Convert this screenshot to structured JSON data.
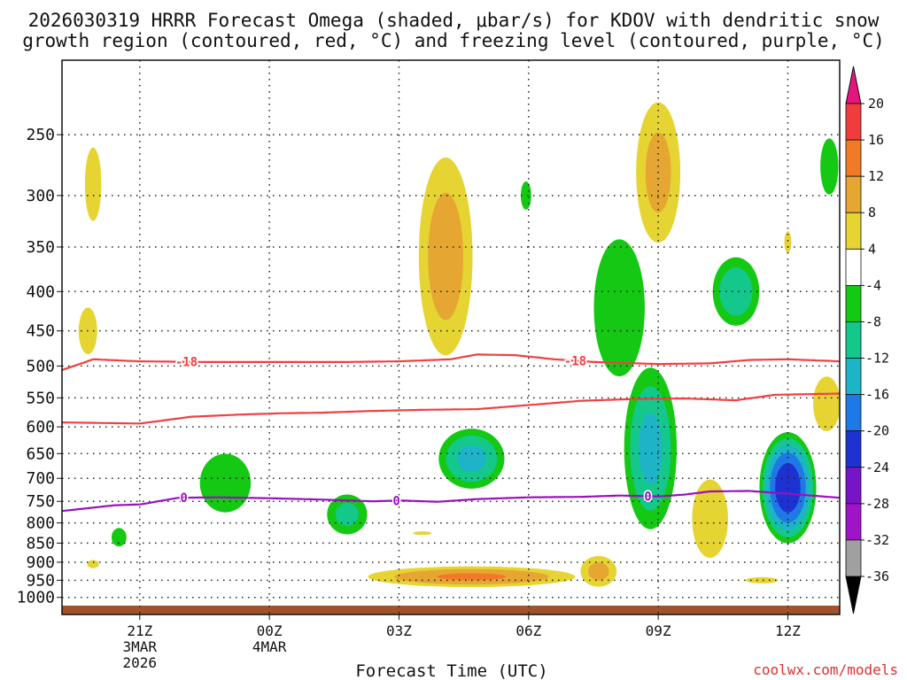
{
  "chart_data": {
    "type": "heatmap",
    "title_line1": "2026030319 HRRR Forecast Omega (shaded, μbar/s) for KDOV with dendritic snow",
    "title_line2": "growth region (contoured, red, °C) and freezing level (contoured, purple, °C)",
    "xlabel": "Forecast Time (UTC)",
    "watermark": "coolwx.com/models",
    "x_range_hours": [
      -3,
      27
    ],
    "x_ticks": [
      {
        "h": 0,
        "label": "21Z",
        "sub1": "3MAR",
        "sub2": "2026"
      },
      {
        "h": 5,
        "label": "00Z",
        "sub1": "4MAR",
        "sub2": ""
      },
      {
        "h": 10,
        "label": "03Z",
        "sub1": "",
        "sub2": ""
      },
      {
        "h": 15,
        "label": "06Z",
        "sub1": "",
        "sub2": ""
      },
      {
        "h": 20,
        "label": "09Z",
        "sub1": "",
        "sub2": ""
      },
      {
        "h": 25,
        "label": "12Z",
        "sub1": "",
        "sub2": ""
      }
    ],
    "y_axis": {
      "scale": "log-pressure",
      "unit": "mb",
      "range_mb": [
        200,
        1025
      ],
      "ticks": [
        250,
        300,
        350,
        400,
        450,
        500,
        550,
        600,
        650,
        700,
        750,
        800,
        850,
        900,
        950,
        1000
      ]
    },
    "colorbar": {
      "labels": [
        "20",
        "16",
        "12",
        "8",
        "4",
        "-4",
        "-8",
        "-12",
        "-16",
        "-20",
        "-24",
        "-28",
        "-32",
        "-36"
      ],
      "levels": [
        20,
        16,
        12,
        8,
        4,
        -4,
        -8,
        -12,
        -16,
        -20,
        -24,
        -28,
        -32,
        -36
      ],
      "bins": [
        {
          "lo": 16,
          "hi": 20,
          "color": "#f03c3c"
        },
        {
          "lo": 12,
          "hi": 16,
          "color": "#f07a28"
        },
        {
          "lo": 8,
          "hi": 12,
          "color": "#e6a632"
        },
        {
          "lo": 4,
          "hi": 8,
          "color": "#e6d432"
        },
        {
          "lo": -4,
          "hi": 4,
          "color": "#ffffff"
        },
        {
          "lo": -8,
          "hi": -4,
          "color": "#14c814"
        },
        {
          "lo": -12,
          "hi": -8,
          "color": "#14c88c"
        },
        {
          "lo": -16,
          "hi": -12,
          "color": "#1eb4c8"
        },
        {
          "lo": -20,
          "hi": -16,
          "color": "#1e78e6"
        },
        {
          "lo": -24,
          "hi": -20,
          "color": "#1e32d2"
        },
        {
          "lo": -28,
          "hi": -24,
          "color": "#7814c8"
        },
        {
          "lo": -32,
          "hi": -28,
          "color": "#a014c8"
        },
        {
          "lo": -36,
          "hi": -32,
          "color": "#a0a0a0"
        }
      ],
      "over_color": "#e6147d",
      "under_color": "#000000"
    },
    "omega_features": [
      {
        "t": -1.8,
        "p": 290,
        "halfwidth_h": 0.55,
        "halfdepth_mb": 55,
        "max_abs": 6,
        "sign": "rising"
      },
      {
        "t": -2.0,
        "p": 450,
        "halfwidth_h": 0.8,
        "halfdepth_mb": 70,
        "max_abs": 5,
        "sign": "rising"
      },
      {
        "t": -1.8,
        "p": 905,
        "halfwidth_h": 0.5,
        "halfdepth_mb": 25,
        "max_abs": 5,
        "sign": "rising"
      },
      {
        "t": -0.8,
        "p": 835,
        "halfwidth_h": 0.5,
        "halfdepth_mb": 40,
        "max_abs": 6,
        "sign": "sinking"
      },
      {
        "t": 3.3,
        "p": 710,
        "halfwidth_h": 1.5,
        "halfdepth_mb": 95,
        "max_abs": 7,
        "sign": "sinking"
      },
      {
        "t": 8.0,
        "p": 780,
        "halfwidth_h": 1.0,
        "halfdepth_mb": 60,
        "max_abs": 10,
        "sign": "sinking"
      },
      {
        "t": 11.8,
        "p": 360,
        "halfwidth_h": 1.3,
        "halfdepth_mb": 130,
        "max_abs": 11,
        "sign": "rising"
      },
      {
        "t": 10.9,
        "p": 825,
        "halfwidth_h": 0.8,
        "halfdepth_mb": 10,
        "max_abs": 5,
        "sign": "rising"
      },
      {
        "t": 12.8,
        "p": 660,
        "halfwidth_h": 1.5,
        "halfdepth_mb": 70,
        "max_abs": 14,
        "sign": "sinking"
      },
      {
        "t": 12.8,
        "p": 940,
        "halfwidth_h": 4.8,
        "halfdepth_mb": 35,
        "max_abs": 13,
        "sign": "rising"
      },
      {
        "t": 14.9,
        "p": 300,
        "halfwidth_h": 0.35,
        "halfdepth_mb": 22,
        "max_abs": 6,
        "sign": "sinking"
      },
      {
        "t": 17.7,
        "p": 925,
        "halfwidth_h": 0.9,
        "halfdepth_mb": 55,
        "max_abs": 10,
        "sign": "rising"
      },
      {
        "t": 18.5,
        "p": 420,
        "halfwidth_h": 1.5,
        "halfdepth_mb": 130,
        "max_abs": 7,
        "sign": "sinking"
      },
      {
        "t": 19.7,
        "p": 640,
        "halfwidth_h": 1.2,
        "halfdepth_mb": 180,
        "max_abs": 14,
        "sign": "sinking"
      },
      {
        "t": 20.0,
        "p": 280,
        "halfwidth_h": 1.1,
        "halfdepth_mb": 75,
        "max_abs": 10,
        "sign": "rising"
      },
      {
        "t": 22.0,
        "p": 790,
        "halfwidth_h": 1.2,
        "halfdepth_mb": 160,
        "max_abs": 6,
        "sign": "rising"
      },
      {
        "t": 23.0,
        "p": 400,
        "halfwidth_h": 1.1,
        "halfdepth_mb": 50,
        "max_abs": 12,
        "sign": "sinking"
      },
      {
        "t": 24.0,
        "p": 950,
        "halfwidth_h": 1.4,
        "halfdepth_mb": 20,
        "max_abs": 5,
        "sign": "rising"
      },
      {
        "t": 25.0,
        "p": 345,
        "halfwidth_h": 0.3,
        "halfdepth_mb": 25,
        "max_abs": 5,
        "sign": "rising"
      },
      {
        "t": 25.0,
        "p": 720,
        "halfwidth_h": 1.2,
        "halfdepth_mb": 130,
        "max_abs": 24,
        "sign": "sinking"
      },
      {
        "t": 26.6,
        "p": 275,
        "halfwidth_h": 0.6,
        "halfdepth_mb": 40,
        "max_abs": 6,
        "sign": "sinking"
      },
      {
        "t": 26.5,
        "p": 560,
        "halfwidth_h": 0.8,
        "halfdepth_mb": 70,
        "max_abs": 7,
        "sign": "rising"
      }
    ],
    "contours": [
      {
        "name": "dgz-top",
        "label": "-18",
        "color": "#f04040",
        "label_at_h": [
          1.8,
          16.8
        ],
        "points": [
          [
            -3,
            506
          ],
          [
            -1.8,
            490
          ],
          [
            0,
            493
          ],
          [
            2.5,
            494
          ],
          [
            5,
            494
          ],
          [
            8,
            494
          ],
          [
            10,
            493
          ],
          [
            12,
            490
          ],
          [
            13,
            483
          ],
          [
            14.5,
            484
          ],
          [
            16,
            490
          ],
          [
            17.5,
            494
          ],
          [
            20,
            497
          ],
          [
            22,
            496
          ],
          [
            23.5,
            491
          ],
          [
            25,
            490
          ],
          [
            27,
            493
          ]
        ]
      },
      {
        "name": "dgz-bottom",
        "label": "",
        "color": "#f04040",
        "label_at_h": [],
        "points": [
          [
            -3,
            592
          ],
          [
            0,
            594
          ],
          [
            2,
            582
          ],
          [
            4,
            578
          ],
          [
            5.5,
            576
          ],
          [
            7,
            575
          ],
          [
            9,
            572
          ],
          [
            11,
            570
          ],
          [
            13,
            569
          ],
          [
            15,
            562
          ],
          [
            17,
            555
          ],
          [
            19,
            552
          ],
          [
            21,
            551
          ],
          [
            23,
            554
          ],
          [
            24.5,
            545
          ],
          [
            27,
            543
          ]
        ]
      },
      {
        "name": "freezing-level",
        "label": "0",
        "color": "#9a10c0",
        "label_at_h": [
          1.7,
          9.9,
          19.6
        ],
        "points": [
          [
            -3,
            772
          ],
          [
            -1,
            759
          ],
          [
            0,
            757
          ],
          [
            1.5,
            742
          ],
          [
            3,
            741
          ],
          [
            5,
            743
          ],
          [
            7,
            746
          ],
          [
            9,
            750
          ],
          [
            10,
            748
          ],
          [
            11.5,
            751
          ],
          [
            13,
            745
          ],
          [
            15,
            741
          ],
          [
            17,
            740
          ],
          [
            18.5,
            737
          ],
          [
            20,
            739
          ],
          [
            21,
            735
          ],
          [
            22,
            728
          ],
          [
            23.5,
            727
          ],
          [
            25,
            733
          ],
          [
            27,
            742
          ]
        ]
      }
    ]
  }
}
